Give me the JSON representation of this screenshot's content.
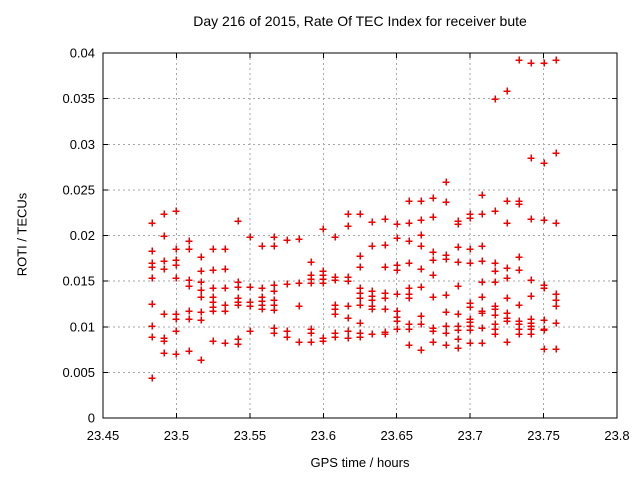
{
  "figure": {
    "background": "#ffffff"
  },
  "chart_data": {
    "type": "scatter",
    "title": "Day 216 of 2015, Rate Of TEC Index for receiver bute",
    "xlabel": "GPS time / hours",
    "ylabel": "ROTI / TECUs",
    "xlim": [
      23.45,
      23.8
    ],
    "ylim": [
      0,
      0.04
    ],
    "xtick_values": [
      23.45,
      23.5,
      23.55,
      23.6,
      23.65,
      23.7,
      23.75,
      23.8
    ],
    "xtick_labels": [
      "23.45",
      "23.5",
      "23.55",
      "23.6",
      "23.65",
      "23.7",
      "23.75",
      "23.8"
    ],
    "ytick_values": [
      0,
      0.005,
      0.01,
      0.015,
      0.02,
      0.025,
      0.03,
      0.035,
      0.04
    ],
    "ytick_labels": [
      "0",
      "0.005",
      "0.01",
      "0.015",
      "0.02",
      "0.025",
      "0.03",
      "0.035",
      "0.04"
    ],
    "grid": true,
    "legend": "none",
    "marker": "plus",
    "colors": {
      "marker": "#ee0000",
      "grid": "#a6a6a6",
      "axis": "#000000",
      "text": "#000000"
    },
    "series": [
      {
        "name": "ROTI",
        "points": [
          [
            23.4833,
            0.0214
          ],
          [
            23.4833,
            0.0183
          ],
          [
            23.4833,
            0.017
          ],
          [
            23.4833,
            0.0166
          ],
          [
            23.4833,
            0.0153
          ],
          [
            23.4833,
            0.0125
          ],
          [
            23.4833,
            0.0101
          ],
          [
            23.4833,
            0.0089
          ],
          [
            23.4833,
            0.0044
          ],
          [
            23.4917,
            0.0224
          ],
          [
            23.4917,
            0.02
          ],
          [
            23.4917,
            0.0172
          ],
          [
            23.4917,
            0.0163
          ],
          [
            23.4917,
            0.0114
          ],
          [
            23.4917,
            0.0088
          ],
          [
            23.4917,
            0.0084
          ],
          [
            23.4917,
            0.0071
          ],
          [
            23.5,
            0.0227
          ],
          [
            23.5,
            0.0185
          ],
          [
            23.5,
            0.0173
          ],
          [
            23.5,
            0.0168
          ],
          [
            23.5,
            0.0153
          ],
          [
            23.5,
            0.0114
          ],
          [
            23.5,
            0.0109
          ],
          [
            23.5,
            0.0095
          ],
          [
            23.5,
            0.007
          ],
          [
            23.5083,
            0.0194
          ],
          [
            23.5083,
            0.0185
          ],
          [
            23.5083,
            0.0151
          ],
          [
            23.5083,
            0.0145
          ],
          [
            23.5083,
            0.0117
          ],
          [
            23.5083,
            0.0108
          ],
          [
            23.5083,
            0.0073
          ],
          [
            23.5167,
            0.0176
          ],
          [
            23.5167,
            0.0161
          ],
          [
            23.5167,
            0.0149
          ],
          [
            23.5167,
            0.014
          ],
          [
            23.5167,
            0.0133
          ],
          [
            23.5167,
            0.0116
          ],
          [
            23.5167,
            0.0107
          ],
          [
            23.5167,
            0.0064
          ],
          [
            23.525,
            0.0185
          ],
          [
            23.525,
            0.0162
          ],
          [
            23.525,
            0.0143
          ],
          [
            23.525,
            0.0133
          ],
          [
            23.525,
            0.0127
          ],
          [
            23.525,
            0.0122
          ],
          [
            23.525,
            0.0117
          ],
          [
            23.525,
            0.0084
          ],
          [
            23.5333,
            0.0185
          ],
          [
            23.5333,
            0.0163
          ],
          [
            23.5333,
            0.0143
          ],
          [
            23.5333,
            0.0124
          ],
          [
            23.5333,
            0.0117
          ],
          [
            23.5333,
            0.0082
          ],
          [
            23.5417,
            0.0216
          ],
          [
            23.5417,
            0.0149
          ],
          [
            23.5417,
            0.0144
          ],
          [
            23.5417,
            0.0131
          ],
          [
            23.5417,
            0.0127
          ],
          [
            23.5417,
            0.0124
          ],
          [
            23.5417,
            0.0087
          ],
          [
            23.5417,
            0.0081
          ],
          [
            23.55,
            0.0198
          ],
          [
            23.55,
            0.0144
          ],
          [
            23.55,
            0.0127
          ],
          [
            23.55,
            0.0123
          ],
          [
            23.55,
            0.0095
          ],
          [
            23.5583,
            0.0189
          ],
          [
            23.5583,
            0.0142
          ],
          [
            23.5583,
            0.0133
          ],
          [
            23.5583,
            0.0128
          ],
          [
            23.5583,
            0.0124
          ],
          [
            23.5583,
            0.0119
          ],
          [
            23.5667,
            0.0198
          ],
          [
            23.5667,
            0.0188
          ],
          [
            23.5667,
            0.0146
          ],
          [
            23.5667,
            0.0139
          ],
          [
            23.5667,
            0.0129
          ],
          [
            23.5667,
            0.0124
          ],
          [
            23.5667,
            0.0118
          ],
          [
            23.5667,
            0.0099
          ],
          [
            23.5667,
            0.0093
          ],
          [
            23.575,
            0.0195
          ],
          [
            23.575,
            0.0147
          ],
          [
            23.575,
            0.0095
          ],
          [
            23.575,
            0.0089
          ],
          [
            23.5833,
            0.0196
          ],
          [
            23.5833,
            0.0148
          ],
          [
            23.5833,
            0.0123
          ],
          [
            23.5833,
            0.0083
          ],
          [
            23.5917,
            0.0171
          ],
          [
            23.5917,
            0.0157
          ],
          [
            23.5917,
            0.0152
          ],
          [
            23.5917,
            0.0148
          ],
          [
            23.5917,
            0.0098
          ],
          [
            23.5917,
            0.0093
          ],
          [
            23.5917,
            0.0083
          ],
          [
            23.6,
            0.0207
          ],
          [
            23.6,
            0.0161
          ],
          [
            23.6,
            0.0157
          ],
          [
            23.6,
            0.0152
          ],
          [
            23.6,
            0.0148
          ],
          [
            23.6,
            0.0088
          ],
          [
            23.6,
            0.0084
          ],
          [
            23.6083,
            0.0198
          ],
          [
            23.6083,
            0.0155
          ],
          [
            23.6083,
            0.0151
          ],
          [
            23.6083,
            0.0124
          ],
          [
            23.6083,
            0.0119
          ],
          [
            23.6083,
            0.0114
          ],
          [
            23.6083,
            0.0093
          ],
          [
            23.6083,
            0.0089
          ],
          [
            23.6167,
            0.0224
          ],
          [
            23.6167,
            0.021
          ],
          [
            23.6167,
            0.0155
          ],
          [
            23.6167,
            0.015
          ],
          [
            23.6167,
            0.0123
          ],
          [
            23.6167,
            0.011
          ],
          [
            23.6167,
            0.0095
          ],
          [
            23.6167,
            0.0088
          ],
          [
            23.625,
            0.0224
          ],
          [
            23.625,
            0.0177
          ],
          [
            23.625,
            0.0165
          ],
          [
            23.625,
            0.0142
          ],
          [
            23.625,
            0.0137
          ],
          [
            23.625,
            0.0132
          ],
          [
            23.625,
            0.0124
          ],
          [
            23.625,
            0.0104
          ],
          [
            23.625,
            0.0093
          ],
          [
            23.625,
            0.0089
          ],
          [
            23.6333,
            0.0215
          ],
          [
            23.6333,
            0.0188
          ],
          [
            23.6333,
            0.0139
          ],
          [
            23.6333,
            0.0134
          ],
          [
            23.6333,
            0.0129
          ],
          [
            23.6333,
            0.0123
          ],
          [
            23.6333,
            0.0119
          ],
          [
            23.6333,
            0.0092
          ],
          [
            23.6417,
            0.0218
          ],
          [
            23.6417,
            0.019
          ],
          [
            23.6417,
            0.0166
          ],
          [
            23.6417,
            0.0137
          ],
          [
            23.6417,
            0.0131
          ],
          [
            23.6417,
            0.0119
          ],
          [
            23.6417,
            0.0094
          ],
          [
            23.6417,
            0.0092
          ],
          [
            23.65,
            0.0213
          ],
          [
            23.65,
            0.0197
          ],
          [
            23.65,
            0.0168
          ],
          [
            23.65,
            0.0162
          ],
          [
            23.65,
            0.0136
          ],
          [
            23.65,
            0.0117
          ],
          [
            23.65,
            0.0111
          ],
          [
            23.65,
            0.0106
          ],
          [
            23.65,
            0.0098
          ],
          [
            23.6583,
            0.0238
          ],
          [
            23.6583,
            0.0214
          ],
          [
            23.6583,
            0.0194
          ],
          [
            23.6583,
            0.017
          ],
          [
            23.6583,
            0.0142
          ],
          [
            23.6583,
            0.0136
          ],
          [
            23.6583,
            0.0131
          ],
          [
            23.6583,
            0.0103
          ],
          [
            23.6583,
            0.0098
          ],
          [
            23.6583,
            0.008
          ],
          [
            23.6667,
            0.0238
          ],
          [
            23.6667,
            0.0217
          ],
          [
            23.6667,
            0.0201
          ],
          [
            23.6667,
            0.0189
          ],
          [
            23.6667,
            0.0163
          ],
          [
            23.6667,
            0.0144
          ],
          [
            23.6667,
            0.0112
          ],
          [
            23.6667,
            0.0103
          ],
          [
            23.6667,
            0.0075
          ],
          [
            23.675,
            0.0241
          ],
          [
            23.675,
            0.022
          ],
          [
            23.675,
            0.0182
          ],
          [
            23.675,
            0.0173
          ],
          [
            23.675,
            0.0157
          ],
          [
            23.675,
            0.0133
          ],
          [
            23.675,
            0.0099
          ],
          [
            23.675,
            0.0095
          ],
          [
            23.675,
            0.0083
          ],
          [
            23.6833,
            0.0259
          ],
          [
            23.6833,
            0.0237
          ],
          [
            23.6833,
            0.0179
          ],
          [
            23.6833,
            0.0174
          ],
          [
            23.6833,
            0.0135
          ],
          [
            23.6833,
            0.0116
          ],
          [
            23.6833,
            0.0101
          ],
          [
            23.6833,
            0.0093
          ],
          [
            23.6833,
            0.008
          ],
          [
            23.6917,
            0.0216
          ],
          [
            23.6917,
            0.0213
          ],
          [
            23.6917,
            0.0187
          ],
          [
            23.6917,
            0.0171
          ],
          [
            23.6917,
            0.0145
          ],
          [
            23.6917,
            0.0114
          ],
          [
            23.6917,
            0.0101
          ],
          [
            23.6917,
            0.0096
          ],
          [
            23.6917,
            0.0087
          ],
          [
            23.6917,
            0.0077
          ],
          [
            23.7,
            0.0224
          ],
          [
            23.7,
            0.0219
          ],
          [
            23.7,
            0.0185
          ],
          [
            23.7,
            0.017
          ],
          [
            23.7,
            0.0126
          ],
          [
            23.7,
            0.0122
          ],
          [
            23.7,
            0.0109
          ],
          [
            23.7,
            0.0105
          ],
          [
            23.7,
            0.0101
          ],
          [
            23.7,
            0.0096
          ],
          [
            23.7,
            0.0082
          ],
          [
            23.7083,
            0.0244
          ],
          [
            23.7083,
            0.0224
          ],
          [
            23.7083,
            0.0189
          ],
          [
            23.7083,
            0.0172
          ],
          [
            23.7083,
            0.0149
          ],
          [
            23.7083,
            0.0133
          ],
          [
            23.7083,
            0.0117
          ],
          [
            23.7083,
            0.0115
          ],
          [
            23.7083,
            0.0099
          ],
          [
            23.7083,
            0.0082
          ],
          [
            23.7167,
            0.035
          ],
          [
            23.7167,
            0.0227
          ],
          [
            23.7167,
            0.017
          ],
          [
            23.7167,
            0.0161
          ],
          [
            23.7167,
            0.0149
          ],
          [
            23.7167,
            0.0123
          ],
          [
            23.7167,
            0.0119
          ],
          [
            23.7167,
            0.0113
          ],
          [
            23.7167,
            0.0103
          ],
          [
            23.7167,
            0.0098
          ],
          [
            23.7167,
            0.0092
          ],
          [
            23.725,
            0.0358
          ],
          [
            23.725,
            0.0238
          ],
          [
            23.725,
            0.0214
          ],
          [
            23.725,
            0.0164
          ],
          [
            23.725,
            0.0153
          ],
          [
            23.725,
            0.0132
          ],
          [
            23.725,
            0.0115
          ],
          [
            23.725,
            0.011
          ],
          [
            23.725,
            0.0106
          ],
          [
            23.725,
            0.0083
          ],
          [
            23.7333,
            0.0392
          ],
          [
            23.7333,
            0.0238
          ],
          [
            23.7333,
            0.0235
          ],
          [
            23.7333,
            0.0176
          ],
          [
            23.7333,
            0.0162
          ],
          [
            23.7333,
            0.0124
          ],
          [
            23.7333,
            0.0106
          ],
          [
            23.7333,
            0.0103
          ],
          [
            23.7333,
            0.0098
          ],
          [
            23.7333,
            0.0092
          ],
          [
            23.7417,
            0.0389
          ],
          [
            23.7417,
            0.0285
          ],
          [
            23.7417,
            0.0218
          ],
          [
            23.7417,
            0.0151
          ],
          [
            23.7417,
            0.0134
          ],
          [
            23.7417,
            0.0108
          ],
          [
            23.7417,
            0.0104
          ],
          [
            23.7417,
            0.0101
          ],
          [
            23.7417,
            0.0098
          ],
          [
            23.7417,
            0.0092
          ],
          [
            23.75,
            0.0389
          ],
          [
            23.75,
            0.028
          ],
          [
            23.75,
            0.0217
          ],
          [
            23.75,
            0.0146
          ],
          [
            23.75,
            0.0142
          ],
          [
            23.75,
            0.0107
          ],
          [
            23.75,
            0.0098
          ],
          [
            23.75,
            0.0096
          ],
          [
            23.75,
            0.0076
          ],
          [
            23.7583,
            0.0392
          ],
          [
            23.7583,
            0.029
          ],
          [
            23.7583,
            0.0214
          ],
          [
            23.7583,
            0.0136
          ],
          [
            23.7583,
            0.0129
          ],
          [
            23.7583,
            0.0123
          ],
          [
            23.7583,
            0.0104
          ],
          [
            23.7583,
            0.0076
          ]
        ]
      }
    ]
  }
}
